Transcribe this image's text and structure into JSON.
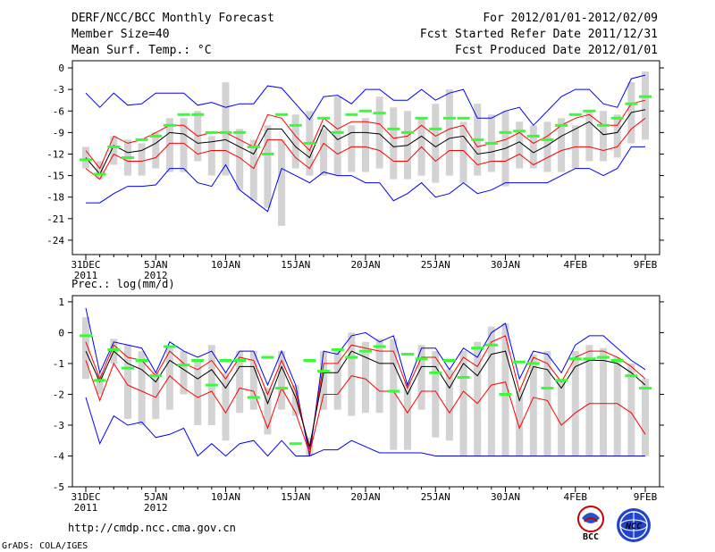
{
  "header": {
    "title": "DERF/NCC/BCC Monthly Forecast",
    "member_size": "Member Size=40",
    "variable": "Mean Surf. Temp.: °C",
    "period": "For 2012/01/01-2012/02/09",
    "fcst_started": "Fcst Started Refer Date 2011/12/31",
    "fcst_produced": "Fcst Produced Date 2012/01/01"
  },
  "footer": {
    "url": "http://cmdp.ncc.cma.gov.cn",
    "grads": "GrADS: COLA/IGES",
    "logo_bcc": "BCC",
    "logo_ncc": "NCC"
  },
  "colors": {
    "max_min": "#0000ff",
    "spread": "#ff0000",
    "mean": "#000000",
    "box": "#d3d3d3",
    "median": "#33ff33"
  },
  "chart_data": [
    {
      "type": "line",
      "subtitle": "",
      "ylim": [
        -26,
        1
      ],
      "yticks": [
        0,
        -3,
        -6,
        -9,
        -12,
        -15,
        -18,
        -21,
        -24
      ],
      "xlim": [
        0,
        40
      ],
      "xticks": [
        {
          "x": 0,
          "l1": "31DEC",
          "l2": "2011"
        },
        {
          "x": 5,
          "l1": "5JAN",
          "l2": "2012"
        },
        {
          "x": 10,
          "l1": "10JAN",
          "l2": ""
        },
        {
          "x": 15,
          "l1": "15JAN",
          "l2": ""
        },
        {
          "x": 20,
          "l1": "20JAN",
          "l2": ""
        },
        {
          "x": 25,
          "l1": "25JAN",
          "l2": ""
        },
        {
          "x": 30,
          "l1": "30JAN",
          "l2": ""
        },
        {
          "x": 35,
          "l1": "4FEB",
          "l2": ""
        },
        {
          "x": 40,
          "l1": "9FEB",
          "l2": ""
        }
      ],
      "series": [
        {
          "name": "max",
          "values": [
            -3.5,
            -5.5,
            -3.5,
            -5.2,
            -5.0,
            -3.5,
            -3.5,
            -3.5,
            -5.2,
            -4.8,
            -5.5,
            -5.0,
            -5.0,
            -2.5,
            -2.8,
            -5.0,
            -7.2,
            -4.0,
            -3.8,
            -5.0,
            -3.0,
            -3.0,
            -4.5,
            -4.5,
            -3.0,
            -4.5,
            -3.5,
            -3.0,
            -7.0,
            -7.0,
            -6.0,
            -5.5,
            -8.0,
            -6.0,
            -4.0,
            -3.0,
            -3.0,
            -5.0,
            -5.5,
            -1.5,
            -1.0
          ]
        },
        {
          "name": "spread_upper",
          "values": [
            -11.5,
            -14.0,
            -9.5,
            -10.5,
            -10.0,
            -9.0,
            -8.0,
            -8.0,
            -9.5,
            -9.0,
            -9.0,
            -10.0,
            -11.0,
            -6.5,
            -7.0,
            -9.5,
            -11.5,
            -7.0,
            -8.5,
            -7.5,
            -7.5,
            -7.8,
            -9.8,
            -9.5,
            -8.0,
            -9.5,
            -8.5,
            -8.0,
            -11.0,
            -10.5,
            -10.0,
            -9.0,
            -10.5,
            -9.5,
            -8.0,
            -7.0,
            -6.5,
            -8.0,
            -8.0,
            -5.0,
            -4.5
          ]
        },
        {
          "name": "mean",
          "values": [
            -12.5,
            -14.8,
            -10.8,
            -11.8,
            -11.5,
            -10.5,
            -9.0,
            -9.2,
            -10.5,
            -10.3,
            -10.0,
            -11.0,
            -12.0,
            -8.5,
            -8.5,
            -11.0,
            -12.5,
            -8.0,
            -10.0,
            -9.0,
            -9.0,
            -9.2,
            -11.0,
            -10.8,
            -9.5,
            -11.0,
            -9.8,
            -9.5,
            -12.0,
            -11.7,
            -11.2,
            -10.3,
            -11.8,
            -10.8,
            -9.5,
            -8.5,
            -7.5,
            -9.3,
            -9.0,
            -6.2,
            -5.8
          ]
        },
        {
          "name": "spread_lower",
          "values": [
            -14.0,
            -15.5,
            -12.0,
            -13.0,
            -13.0,
            -12.5,
            -10.5,
            -10.5,
            -12.0,
            -11.5,
            -11.5,
            -12.5,
            -14.0,
            -10.0,
            -10.0,
            -12.5,
            -14.0,
            -10.5,
            -12.0,
            -11.0,
            -11.0,
            -11.5,
            -13.0,
            -13.0,
            -11.0,
            -13.0,
            -11.5,
            -11.5,
            -13.5,
            -13.0,
            -13.0,
            -12.0,
            -13.5,
            -12.5,
            -11.5,
            -11.0,
            -11.0,
            -11.5,
            -11.0,
            -8.5,
            -7.0
          ]
        },
        {
          "name": "min",
          "values": [
            -18.8,
            -18.8,
            -17.5,
            -16.5,
            -16.5,
            -16.3,
            -14.0,
            -14.0,
            -16.0,
            -16.5,
            -13.5,
            -17.0,
            -18.5,
            -20.0,
            -14.0,
            -15.0,
            -16.0,
            -14.5,
            -15.0,
            -15.0,
            -16.0,
            -16.0,
            -18.5,
            -17.5,
            -16.0,
            -18.0,
            -17.5,
            -16.0,
            -17.5,
            -17.0,
            -16.0,
            -16.0,
            -16.0,
            -16.0,
            -15.0,
            -14.0,
            -14.0,
            -15.0,
            -14.0,
            -11.0,
            -11.0
          ]
        }
      ],
      "boxes": [
        [
          -11.0,
          -14.0
        ],
        [
          -13.0,
          -15.5
        ],
        [
          -9.5,
          -13.5
        ],
        [
          -10.0,
          -15.0
        ],
        [
          -10.5,
          -15.0
        ],
        [
          -9.0,
          -14.0
        ],
        [
          -7.0,
          -14.5
        ],
        [
          -7.0,
          -14.5
        ],
        [
          -6.0,
          -13.0
        ],
        [
          -9.5,
          -15.0
        ],
        [
          -2.0,
          -15.0
        ],
        [
          -8.5,
          -17.0
        ],
        [
          -10.0,
          -18.5
        ],
        [
          -8.0,
          -19.5
        ],
        [
          -10.0,
          -22.0
        ],
        [
          -6.5,
          -14.0
        ],
        [
          -6.0,
          -15.0
        ],
        [
          -8.5,
          -15.0
        ],
        [
          -4.0,
          -15.0
        ],
        [
          -8.0,
          -14.5
        ],
        [
          -7.0,
          -14.5
        ],
        [
          -4.0,
          -14.0
        ],
        [
          -5.5,
          -15.5
        ],
        [
          -6.0,
          -15.5
        ],
        [
          -7.0,
          -15.0
        ],
        [
          -5.0,
          -16.0
        ],
        [
          -3.0,
          -15.0
        ],
        [
          -7.5,
          -16.0
        ],
        [
          -5.0,
          -15.0
        ],
        [
          -6.5,
          -14.5
        ],
        [
          -6.0,
          -16.5
        ],
        [
          -7.5,
          -14.0
        ],
        [
          -8.0,
          -14.0
        ],
        [
          -7.5,
          -14.5
        ],
        [
          -7.0,
          -14.5
        ],
        [
          -8.0,
          -14.0
        ],
        [
          -6.0,
          -13.0
        ],
        [
          -6.0,
          -13.0
        ],
        [
          -6.5,
          -12.5
        ],
        [
          -2.0,
          -10.5
        ],
        [
          -0.5,
          -10.0
        ]
      ],
      "medians": [
        -12.8,
        -14.8,
        -11.0,
        -12.5,
        -10.0,
        -9.5,
        -8.0,
        -6.5,
        -6.5,
        -9.0,
        -9.0,
        -9.0,
        -11.0,
        -12.0,
        -6.5,
        -8.0,
        -10.5,
        -7.0,
        -9.0,
        -6.5,
        -6.0,
        -6.3,
        -8.5,
        -9.0,
        -7.0,
        -8.5,
        -7.0,
        -7.0,
        -10.0,
        -10.5,
        -9.0,
        -8.8,
        -9.5,
        -10.0,
        -8.0,
        -6.5,
        -6.0,
        -8.0,
        -7.0,
        -5.0,
        -4.0
      ]
    },
    {
      "type": "line",
      "subtitle": "Prec.: log(mm/d)",
      "ylim": [
        -5,
        1.2
      ],
      "yticks": [
        1,
        0,
        -1,
        -2,
        -3,
        -4,
        -5
      ],
      "xlim": [
        0,
        40
      ],
      "xticks": [
        {
          "x": 0,
          "l1": "31DEC",
          "l2": "2011"
        },
        {
          "x": 5,
          "l1": "5JAN",
          "l2": "2012"
        },
        {
          "x": 10,
          "l1": "10JAN",
          "l2": ""
        },
        {
          "x": 15,
          "l1": "15JAN",
          "l2": ""
        },
        {
          "x": 20,
          "l1": "20JAN",
          "l2": ""
        },
        {
          "x": 25,
          "l1": "25JAN",
          "l2": ""
        },
        {
          "x": 30,
          "l1": "30JAN",
          "l2": ""
        },
        {
          "x": 35,
          "l1": "4FEB",
          "l2": ""
        },
        {
          "x": 40,
          "l1": "9FEB",
          "l2": ""
        }
      ],
      "series": [
        {
          "name": "max",
          "values": [
            0.8,
            -1.3,
            -0.3,
            -0.4,
            -0.5,
            -1.3,
            -0.3,
            -0.6,
            -0.8,
            -0.6,
            -1.3,
            -0.6,
            -0.6,
            -1.7,
            -0.6,
            -1.7,
            -4.0,
            -0.6,
            -0.7,
            -0.1,
            0.0,
            -0.3,
            -0.1,
            -1.7,
            -0.5,
            -0.5,
            -1.2,
            -0.5,
            -0.8,
            0.0,
            0.3,
            -1.5,
            -0.6,
            -0.7,
            -1.3,
            -0.4,
            -0.1,
            -0.1,
            -0.5,
            -0.9,
            -1.2
          ]
        },
        {
          "name": "spread_upper",
          "values": [
            -0.3,
            -1.5,
            -0.4,
            -0.8,
            -0.9,
            -1.4,
            -0.6,
            -1.0,
            -1.2,
            -0.9,
            -1.5,
            -0.8,
            -0.9,
            -2.0,
            -0.9,
            -1.9,
            -3.8,
            -1.0,
            -1.0,
            -0.4,
            -0.5,
            -0.6,
            -0.6,
            -1.8,
            -0.8,
            -0.8,
            -1.5,
            -0.8,
            -1.1,
            -0.3,
            -0.1,
            -1.9,
            -0.8,
            -1.0,
            -1.6,
            -0.8,
            -0.6,
            -0.6,
            -0.8,
            -1.1,
            -1.5
          ]
        },
        {
          "name": "mean",
          "values": [
            -0.6,
            -1.6,
            -0.6,
            -1.0,
            -1.2,
            -1.6,
            -0.9,
            -1.2,
            -1.5,
            -1.2,
            -1.8,
            -1.1,
            -1.1,
            -2.3,
            -1.1,
            -2.1,
            -3.7,
            -1.3,
            -1.3,
            -0.6,
            -0.8,
            -1.0,
            -1.0,
            -2.0,
            -1.1,
            -1.1,
            -1.8,
            -1.0,
            -1.4,
            -0.7,
            -0.6,
            -2.2,
            -1.1,
            -1.2,
            -1.8,
            -1.1,
            -0.9,
            -0.9,
            -1.0,
            -1.3,
            -1.7
          ]
        },
        {
          "name": "spread_lower",
          "values": [
            -0.9,
            -2.2,
            -1.0,
            -1.7,
            -1.9,
            -2.1,
            -1.4,
            -1.8,
            -2.1,
            -1.9,
            -2.6,
            -1.8,
            -1.9,
            -3.1,
            -1.8,
            -2.6,
            -3.9,
            -2.0,
            -2.0,
            -1.4,
            -1.5,
            -1.9,
            -1.9,
            -2.6,
            -1.9,
            -1.9,
            -2.6,
            -1.9,
            -2.3,
            -1.7,
            -1.6,
            -3.1,
            -2.1,
            -2.2,
            -3.0,
            -2.6,
            -2.3,
            -2.3,
            -2.3,
            -2.6,
            -3.3
          ]
        },
        {
          "name": "min",
          "values": [
            -2.1,
            -3.6,
            -2.7,
            -3.0,
            -2.9,
            -3.4,
            -3.3,
            -3.1,
            -4.0,
            -3.6,
            -4.0,
            -3.6,
            -3.5,
            -4.0,
            -3.5,
            -4.0,
            -4.0,
            -3.8,
            -3.8,
            -3.5,
            -3.7,
            -3.9,
            -3.9,
            -3.9,
            -3.9,
            -4.0,
            -4.0,
            -4.0,
            -4.0,
            -4.0,
            -4.0,
            -4.0,
            -4.0,
            -4.0,
            -4.0,
            -4.0,
            -4.0,
            -4.0,
            -4.0,
            -4.0,
            -4.0
          ]
        }
      ],
      "boxes": [
        [
          0.5,
          -1.5
        ],
        [
          -1.3,
          -2.0
        ],
        [
          -0.2,
          -1.0
        ],
        [
          -0.4,
          -2.8
        ],
        [
          -0.6,
          -3.0
        ],
        [
          -1.3,
          -2.8
        ],
        [
          -0.5,
          -2.5
        ],
        [
          -0.6,
          -2.0
        ],
        [
          -0.9,
          -3.0
        ],
        [
          -0.4,
          -3.0
        ],
        [
          -1.3,
          -3.5
        ],
        [
          -0.6,
          -2.6
        ],
        [
          -0.6,
          -2.5
        ],
        [
          -1.8,
          -3.3
        ],
        [
          -0.6,
          -2.5
        ],
        [
          -1.7,
          -2.7
        ],
        [
          -3.4,
          -4.0
        ],
        [
          -0.6,
          -2.5
        ],
        [
          -0.6,
          -2.5
        ],
        [
          0.0,
          -2.7
        ],
        [
          -0.3,
          -2.6
        ],
        [
          -0.2,
          -2.6
        ],
        [
          -0.2,
          -3.8
        ],
        [
          -1.6,
          -3.8
        ],
        [
          -0.4,
          -2.5
        ],
        [
          -0.6,
          -3.4
        ],
        [
          -1.2,
          -3.5
        ],
        [
          -0.6,
          -4.0
        ],
        [
          -0.3,
          -4.0
        ],
        [
          0.2,
          -4.0
        ],
        [
          0.3,
          -4.0
        ],
        [
          -1.9,
          -4.0
        ],
        [
          -0.7,
          -4.0
        ],
        [
          -0.6,
          -4.0
        ],
        [
          -1.5,
          -4.0
        ],
        [
          -0.6,
          -4.0
        ],
        [
          -0.4,
          -4.0
        ],
        [
          -0.5,
          -4.0
        ],
        [
          -0.8,
          -4.0
        ],
        [
          -1.0,
          -4.0
        ],
        [
          -1.5,
          -4.0
        ]
      ],
      "medians": [
        -0.1,
        -1.55,
        -0.55,
        -1.15,
        -0.9,
        -1.4,
        -0.45,
        -1.05,
        -0.9,
        -1.7,
        -0.9,
        -0.9,
        -2.1,
        -0.8,
        -1.8,
        -3.6,
        -0.9,
        -1.25,
        -0.55,
        -0.8,
        -0.6,
        -0.45,
        -1.9,
        -0.7,
        -0.85,
        -1.3,
        -0.9,
        -1.45,
        -0.5,
        -0.4,
        -2.0,
        -0.95,
        -1.0,
        -1.8,
        -1.55,
        -0.85,
        -0.85,
        -0.8,
        -0.9,
        -1.4,
        -1.8
      ]
    }
  ]
}
